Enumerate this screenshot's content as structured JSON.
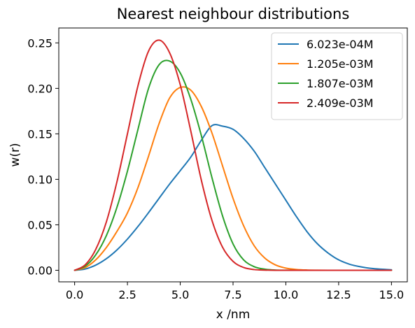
{
  "chart_data": {
    "type": "line",
    "title": "Nearest neighbour distributions",
    "xlabel": "x /nm",
    "ylabel": "w(r)",
    "xlim": [
      -0.75,
      15.75
    ],
    "ylim": [
      -0.0127,
      0.2664
    ],
    "xticks": [
      0.0,
      2.5,
      5.0,
      7.5,
      10.0,
      12.5,
      15.0
    ],
    "xtick_labels": [
      "0.0",
      "2.5",
      "5.0",
      "7.5",
      "10.0",
      "12.5",
      "15.0"
    ],
    "yticks": [
      0.0,
      0.05,
      0.1,
      0.15,
      0.2,
      0.25
    ],
    "ytick_labels": [
      "0.00",
      "0.05",
      "0.10",
      "0.15",
      "0.20",
      "0.25"
    ],
    "grid": false,
    "legend_position": "top-right",
    "x": [
      0,
      0.5,
      1,
      1.5,
      2,
      2.5,
      3,
      3.5,
      4,
      4.5,
      5,
      5.5,
      6,
      6.5,
      7,
      7.5,
      8,
      8.5,
      9,
      9.5,
      10,
      10.5,
      11,
      11.5,
      12,
      12.5,
      13,
      13.5,
      14,
      14.5,
      15
    ],
    "series": [
      {
        "name": "6.023e-04M",
        "color": "#1f77b4",
        "values": [
          0.0,
          0.0014,
          0.0057,
          0.0127,
          0.0223,
          0.0343,
          0.0482,
          0.0634,
          0.0792,
          0.0949,
          0.1095,
          0.1245,
          0.143,
          0.159,
          0.1585,
          0.155,
          0.145,
          0.131,
          0.113,
          0.095,
          0.077,
          0.059,
          0.0425,
          0.029,
          0.019,
          0.0115,
          0.0068,
          0.004,
          0.0022,
          0.0012,
          0.0006
        ]
      },
      {
        "name": "1.205e-03M",
        "color": "#ff7f0e",
        "values": [
          0.0,
          0.003,
          0.0115,
          0.025,
          0.0426,
          0.0631,
          0.091,
          0.1255,
          0.1614,
          0.1895,
          0.201,
          0.198,
          0.18,
          0.151,
          0.115,
          0.079,
          0.049,
          0.027,
          0.0135,
          0.006,
          0.0024,
          0.0009,
          0.0003,
          0.0001,
          0.0,
          0.0,
          0.0,
          0.0,
          0.0,
          0.0,
          0.0
        ]
      },
      {
        "name": "1.807e-03M",
        "color": "#2ca02c",
        "values": [
          0.0,
          0.0045,
          0.017,
          0.038,
          0.069,
          0.109,
          0.155,
          0.2,
          0.226,
          0.23,
          0.217,
          0.188,
          0.148,
          0.102,
          0.06,
          0.029,
          0.0115,
          0.004,
          0.0012,
          0.0003,
          0.0001,
          0.0,
          0.0,
          0.0,
          0.0,
          0.0,
          0.0,
          0.0,
          0.0,
          0.0,
          0.0
        ]
      },
      {
        "name": "2.409e-03M",
        "color": "#d62728",
        "values": [
          0.0,
          0.006,
          0.023,
          0.053,
          0.097,
          0.15,
          0.203,
          0.241,
          0.253,
          0.239,
          0.204,
          0.153,
          0.099,
          0.055,
          0.0255,
          0.0098,
          0.0031,
          0.0008,
          0.0002,
          0.0,
          0.0,
          0.0,
          0.0,
          0.0,
          0.0,
          0.0,
          0.0,
          0.0,
          0.0,
          0.0,
          0.0
        ]
      }
    ]
  }
}
